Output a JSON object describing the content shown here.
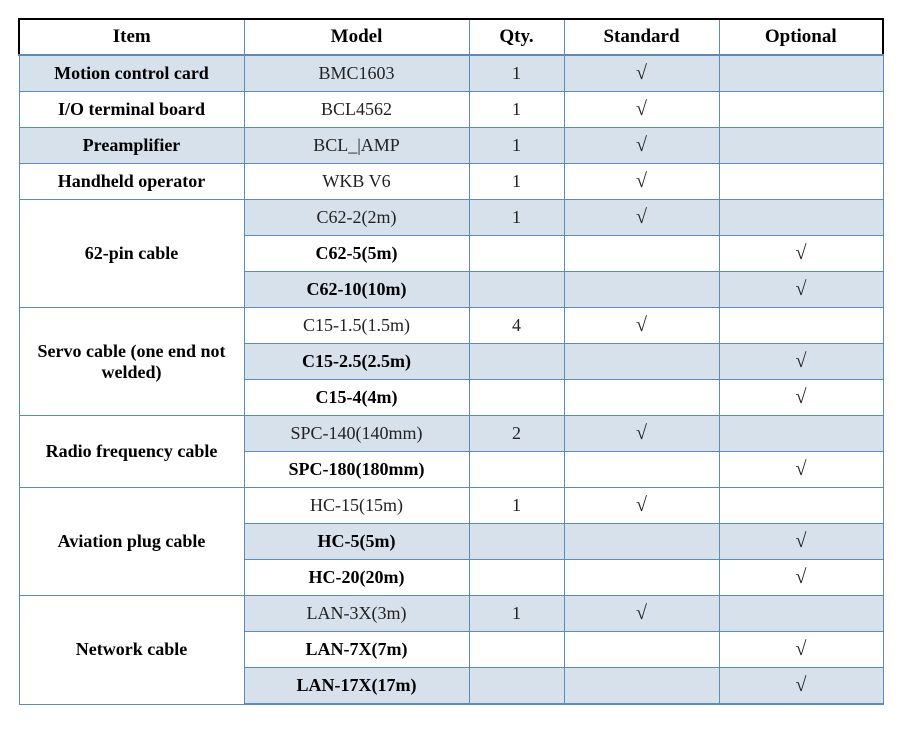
{
  "colors": {
    "border": "#5b8cb8",
    "header_border_top": "#000000",
    "shaded_bg": "#d6e1ec",
    "text": "#222222",
    "item_text": "#000000",
    "background": "#ffffff"
  },
  "check_mark": "√",
  "headers": {
    "item": "Item",
    "model": "Model",
    "qty": "Qty.",
    "standard": "Standard",
    "optional": "Optional"
  },
  "column_widths": {
    "item": 225,
    "model": 225,
    "qty": 95,
    "standard": 155,
    "optional": 164
  },
  "font": {
    "family": "Times New Roman",
    "header_size_pt": 14,
    "body_size_pt": 13
  },
  "groups": [
    {
      "item": "Motion control card",
      "rows": [
        {
          "model": "BMC1603",
          "qty": "1",
          "standard": true,
          "optional": false,
          "shaded": true
        }
      ]
    },
    {
      "item": "I/O terminal board",
      "rows": [
        {
          "model": "BCL4562",
          "qty": "1",
          "standard": true,
          "optional": false,
          "shaded": false
        }
      ]
    },
    {
      "item": "Preamplifier",
      "rows": [
        {
          "model": "BCL_|AMP",
          "qty": "1",
          "standard": true,
          "optional": false,
          "shaded": true
        }
      ]
    },
    {
      "item": "Handheld operator",
      "rows": [
        {
          "model": "WKB V6",
          "qty": "1",
          "standard": true,
          "optional": false,
          "shaded": false
        }
      ]
    },
    {
      "item": "62-pin cable",
      "rows": [
        {
          "model": "C62-2(2m)",
          "qty": "1",
          "standard": true,
          "optional": false,
          "shaded": true
        },
        {
          "model": "C62-5(5m)",
          "qty": "",
          "standard": false,
          "optional": true,
          "shaded": false
        },
        {
          "model": "C62-10(10m)",
          "qty": "",
          "standard": false,
          "optional": true,
          "shaded": true
        }
      ]
    },
    {
      "item": "Servo cable (one end not welded)",
      "rows": [
        {
          "model": "C15-1.5(1.5m)",
          "qty": "4",
          "standard": true,
          "optional": false,
          "shaded": false
        },
        {
          "model": "C15-2.5(2.5m)",
          "qty": "",
          "standard": false,
          "optional": true,
          "shaded": true
        },
        {
          "model": "C15-4(4m)",
          "qty": "",
          "standard": false,
          "optional": true,
          "shaded": false
        }
      ]
    },
    {
      "item": "Radio frequency cable",
      "rows": [
        {
          "model": "SPC-140(140mm)",
          "qty": "2",
          "standard": true,
          "optional": false,
          "shaded": true
        },
        {
          "model": "SPC-180(180mm)",
          "qty": "",
          "standard": false,
          "optional": true,
          "shaded": false
        }
      ]
    },
    {
      "item": "Aviation plug cable",
      "rows": [
        {
          "model": "HC-15(15m)",
          "qty": "1",
          "standard": true,
          "optional": false,
          "shaded": false
        },
        {
          "model": "HC-5(5m)",
          "qty": "",
          "standard": false,
          "optional": true,
          "shaded": true
        },
        {
          "model": "HC-20(20m)",
          "qty": "",
          "standard": false,
          "optional": true,
          "shaded": false
        }
      ]
    },
    {
      "item": "Network cable",
      "rows": [
        {
          "model": "LAN-3X(3m)",
          "qty": "1",
          "standard": true,
          "optional": false,
          "shaded": true
        },
        {
          "model": "LAN-7X(7m)",
          "qty": "",
          "standard": false,
          "optional": true,
          "shaded": false
        },
        {
          "model": "LAN-17X(17m)",
          "qty": "",
          "standard": false,
          "optional": true,
          "shaded": true
        }
      ]
    }
  ]
}
